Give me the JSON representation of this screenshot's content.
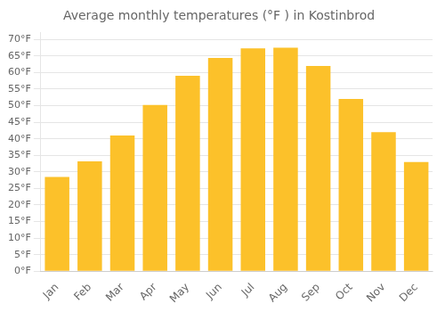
{
  "chart_data": {
    "type": "bar",
    "title": "Average monthly temperatures (°F ) in Kostinbrod",
    "categories": [
      "Jan",
      "Feb",
      "Mar",
      "Apr",
      "May",
      "Jun",
      "Jul",
      "Aug",
      "Sep",
      "Oct",
      "Nov",
      "Dec"
    ],
    "values": [
      28.5,
      33.2,
      41.0,
      50.2,
      59.0,
      64.4,
      67.3,
      67.5,
      62.0,
      52.0,
      42.0,
      33.0
    ],
    "color": "#FCC12A",
    "ylim": [
      0,
      72
    ],
    "yticks": [
      {
        "value": 0,
        "label": "0°F"
      },
      {
        "value": 5,
        "label": "5°F"
      },
      {
        "value": 10,
        "label": "10°F"
      },
      {
        "value": 15,
        "label": "15°F"
      },
      {
        "value": 20,
        "label": "20°F"
      },
      {
        "value": 25,
        "label": "25°F"
      },
      {
        "value": 30,
        "label": "30°F"
      },
      {
        "value": 35,
        "label": "35°F"
      },
      {
        "value": 40,
        "label": "40°F"
      },
      {
        "value": 45,
        "label": "45°F"
      },
      {
        "value": 50,
        "label": "50°F"
      },
      {
        "value": 55,
        "label": "55°F"
      },
      {
        "value": 60,
        "label": "60°F"
      },
      {
        "value": 65,
        "label": "65°F"
      },
      {
        "value": 70,
        "label": "70°F"
      }
    ],
    "grid": true
  }
}
